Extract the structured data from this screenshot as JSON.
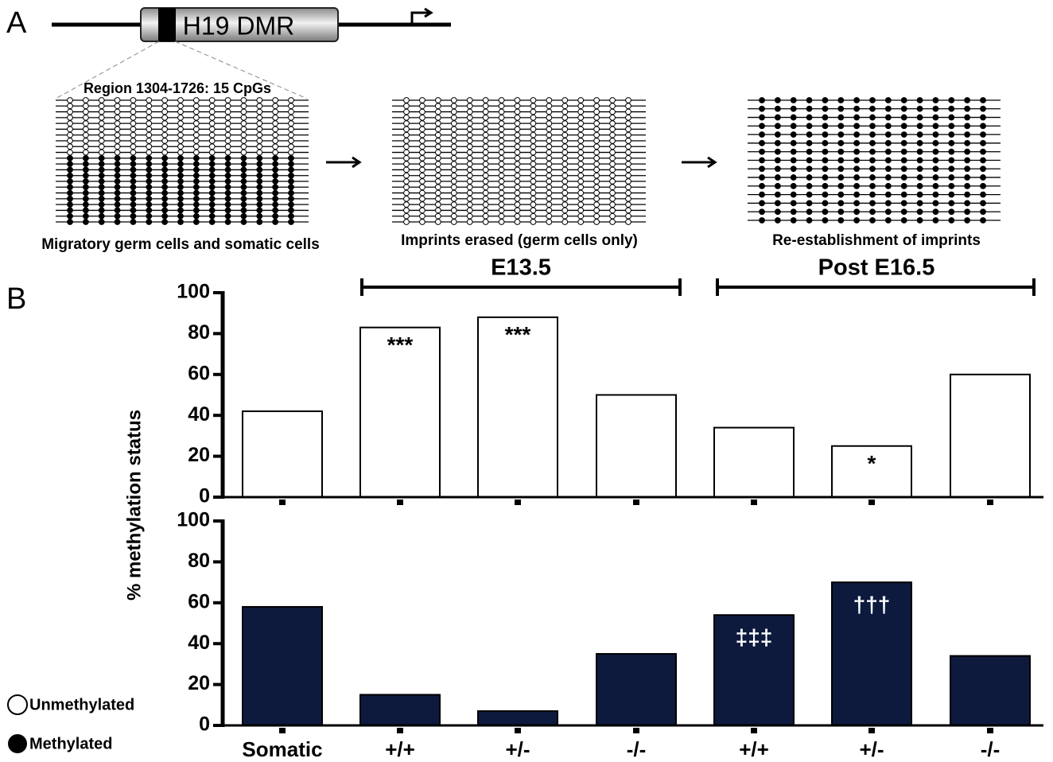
{
  "panel_a": {
    "label": "A",
    "gene": "H19 DMR",
    "region": "Region 1304-1726: 15 CpGs",
    "stages": [
      {
        "caption": "Migratory germ cells and somatic cells"
      },
      {
        "caption": "Imprints erased (germ cells only)"
      },
      {
        "caption": "Re-establishment of imprints"
      }
    ],
    "periods": [
      {
        "label": "E13.5"
      },
      {
        "label": "Post E16.5"
      }
    ]
  },
  "panel_b": {
    "label": "B"
  },
  "chart_data": [
    {
      "type": "bar",
      "ylabel": "% methylation status",
      "series": [
        {
          "name": "Unmethylated",
          "color": "#ffffff",
          "values": [
            42,
            83,
            88,
            50,
            34,
            25,
            60
          ]
        }
      ],
      "annotations": [
        null,
        "***",
        "***",
        null,
        null,
        "*",
        null
      ],
      "ylim": [
        0,
        100
      ],
      "yticks": [
        0,
        20,
        40,
        60,
        80,
        100
      ]
    },
    {
      "type": "bar",
      "categories": [
        "Somatic",
        "+/+",
        "+/-",
        "-/-",
        "+/+",
        "+/-",
        "-/-"
      ],
      "series": [
        {
          "name": "Methylated",
          "color": "#0d1a3d",
          "values": [
            58,
            15,
            7,
            35,
            54,
            70,
            34
          ]
        }
      ],
      "annotations": [
        null,
        null,
        null,
        null,
        "‡‡‡",
        "†††",
        null
      ],
      "ylim": [
        0,
        100
      ],
      "yticks": [
        0,
        20,
        40,
        60,
        80,
        100
      ]
    }
  ]
}
